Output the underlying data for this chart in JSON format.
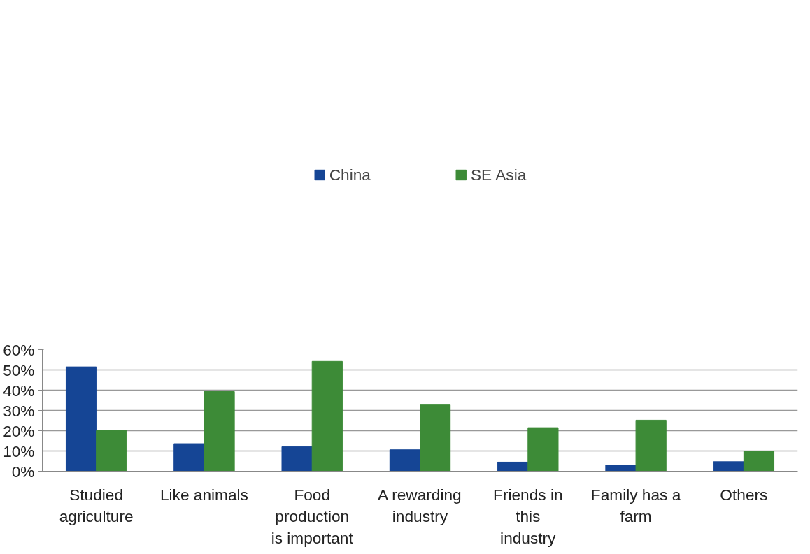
{
  "chart_data": {
    "type": "bar",
    "categories": [
      "Studied agriculture",
      "Like animals",
      "Food production is important",
      "A rewarding industry",
      "Friends in this industry",
      "Family has a farm",
      "Others"
    ],
    "series": [
      {
        "name": "China",
        "color": "#154595",
        "values": [
          51.5,
          13.6,
          12.1,
          10.6,
          4.5,
          3.0,
          4.7
        ]
      },
      {
        "name": "SE Asia",
        "color": "#3d8b37",
        "values": [
          20.0,
          39.3,
          54.2,
          32.7,
          21.5,
          25.2,
          10.0
        ]
      }
    ],
    "ylim": [
      0,
      60
    ],
    "yticks": [
      {
        "value": 0,
        "label": "0%"
      },
      {
        "value": 10,
        "label": "10%"
      },
      {
        "value": 20,
        "label": "20%"
      },
      {
        "value": 30,
        "label": "30%"
      },
      {
        "value": 40,
        "label": "40%"
      },
      {
        "value": 50,
        "label": "50%"
      },
      {
        "value": 60,
        "label": "60%"
      }
    ],
    "grid": "y",
    "legend": "top"
  }
}
